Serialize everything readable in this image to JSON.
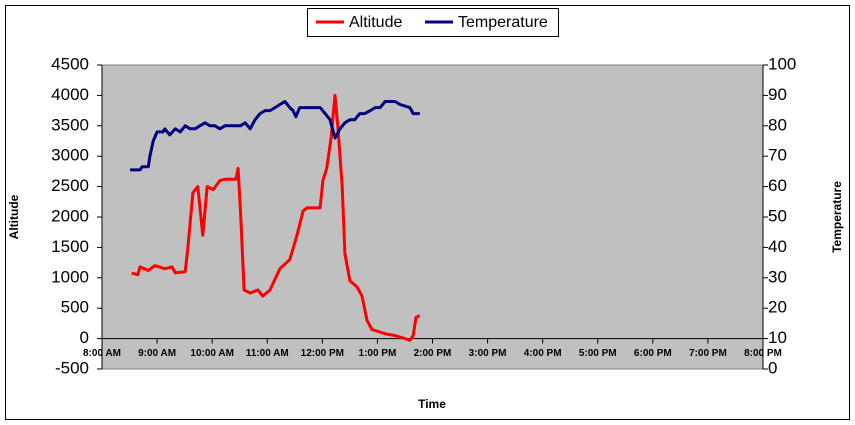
{
  "chart_data": {
    "type": "line",
    "xlabel": "Time",
    "ylabel": "Altitude",
    "y2label": "Temperature",
    "xlim": [
      8,
      20
    ],
    "xticks": [
      {
        "value": 8,
        "label": "8:00 AM"
      },
      {
        "value": 9,
        "label": "9:00 AM"
      },
      {
        "value": 10,
        "label": "10:00 AM"
      },
      {
        "value": 11,
        "label": "11:00 AM"
      },
      {
        "value": 12,
        "label": "12:00 PM"
      },
      {
        "value": 13,
        "label": "1:00 PM"
      },
      {
        "value": 14,
        "label": "2:00 PM"
      },
      {
        "value": 15,
        "label": "3:00 PM"
      },
      {
        "value": 16,
        "label": "4:00 PM"
      },
      {
        "value": 17,
        "label": "5:00 PM"
      },
      {
        "value": 18,
        "label": "6:00 PM"
      },
      {
        "value": 19,
        "label": "7:00 PM"
      },
      {
        "value": 20,
        "label": "8:00 PM"
      }
    ],
    "ylim": [
      -500,
      4500
    ],
    "yticks": [
      -500,
      0,
      500,
      1000,
      1500,
      2000,
      2500,
      3000,
      3500,
      4000,
      4500
    ],
    "y2lim": [
      0,
      100
    ],
    "y2ticks": [
      0,
      10,
      20,
      30,
      40,
      50,
      60,
      70,
      80,
      90,
      100
    ],
    "legend": "top",
    "series": [
      {
        "name": "Altitude",
        "color": "#ff0000",
        "x": [
          8.54,
          8.65,
          8.69,
          8.84,
          8.96,
          9.14,
          9.27,
          9.33,
          9.51,
          9.56,
          9.65,
          9.74,
          9.83,
          9.91,
          10.02,
          10.14,
          10.23,
          10.43,
          10.47,
          10.52,
          10.58,
          10.69,
          10.83,
          10.92,
          11.05,
          11.23,
          11.41,
          11.54,
          11.65,
          11.72,
          11.96,
          12.01,
          12.08,
          12.16,
          12.23,
          12.28,
          12.36,
          12.41,
          12.5,
          12.63,
          12.72,
          12.81,
          12.9,
          13.14,
          13.32,
          13.5,
          13.59,
          13.65,
          13.7,
          13.77
        ],
        "values": [
          1080,
          1050,
          1180,
          1120,
          1200,
          1150,
          1180,
          1080,
          1100,
          1500,
          2400,
          2500,
          1700,
          2500,
          2450,
          2600,
          2620,
          2620,
          2800,
          2000,
          800,
          750,
          800,
          700,
          800,
          1150,
          1300,
          1700,
          2100,
          2150,
          2150,
          2600,
          2800,
          3300,
          4000,
          3500,
          2500,
          1400,
          950,
          850,
          700,
          300,
          150,
          80,
          50,
          0,
          -30,
          50,
          350,
          380
        ]
      },
      {
        "name": "Temperature",
        "color": "#000080",
        "axis": "y2",
        "x": [
          8.51,
          8.69,
          8.73,
          8.84,
          8.87,
          8.93,
          9.0,
          9.11,
          9.14,
          9.23,
          9.33,
          9.42,
          9.51,
          9.6,
          9.69,
          9.78,
          9.87,
          9.96,
          10.05,
          10.14,
          10.23,
          10.51,
          10.6,
          10.69,
          10.78,
          10.87,
          10.96,
          11.05,
          11.14,
          11.23,
          11.32,
          11.41,
          11.47,
          11.52,
          11.59,
          11.69,
          11.87,
          11.96,
          12.05,
          12.14,
          12.23,
          12.32,
          12.41,
          12.5,
          12.59,
          12.68,
          12.77,
          12.87,
          12.96,
          13.05,
          13.14,
          13.32,
          13.41,
          13.59,
          13.65,
          13.7,
          13.77
        ],
        "values": [
          65.5,
          65.5,
          66.5,
          66.5,
          70,
          75,
          78,
          78,
          79,
          77,
          79,
          78,
          80,
          79,
          79,
          80,
          81,
          80,
          80,
          79,
          80,
          80,
          81,
          79,
          82,
          84,
          85,
          85,
          86,
          87,
          88,
          86,
          85,
          83,
          86,
          86,
          86,
          86,
          84,
          82,
          76,
          79,
          81,
          82,
          82,
          84,
          84,
          85,
          86,
          86,
          88,
          88,
          87,
          86,
          84,
          84,
          84
        ]
      }
    ]
  }
}
